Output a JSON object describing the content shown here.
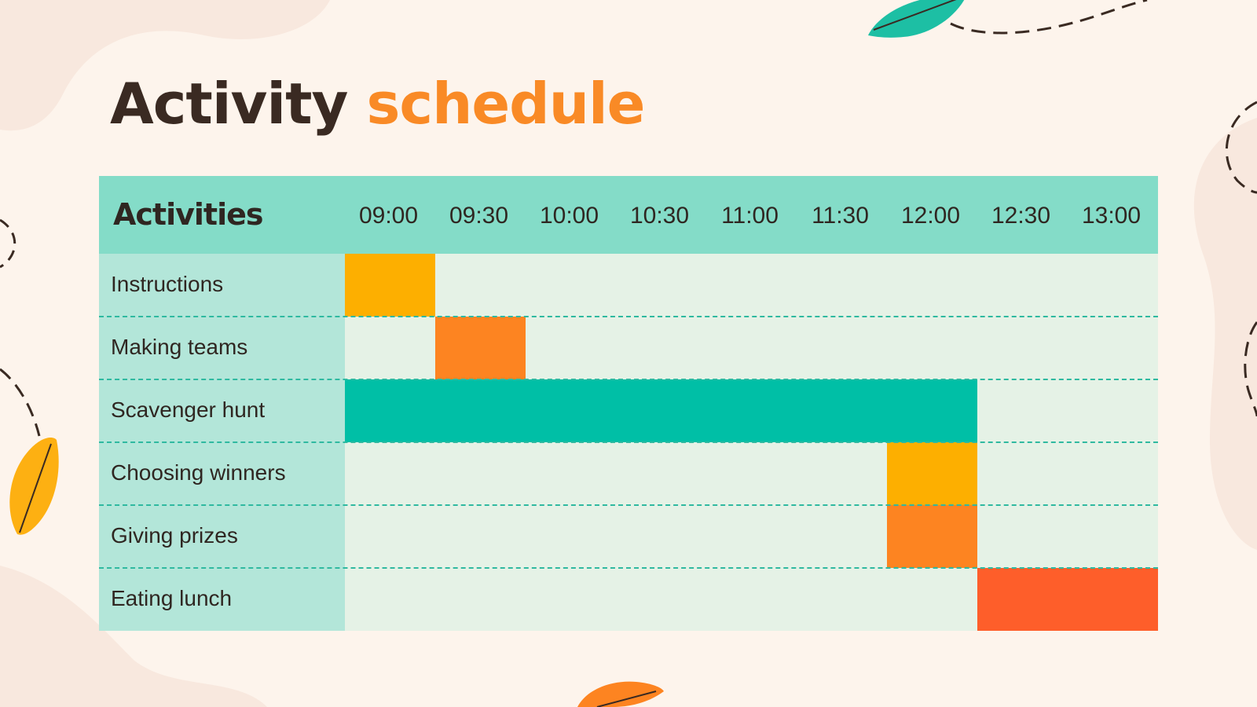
{
  "title": {
    "part1": "Activity",
    "part2": "schedule"
  },
  "colors": {
    "background": "#fdf4ec",
    "header": "#84dcc8",
    "label_column": "#b3e6d9",
    "track": "#e5f2e6",
    "title_dark": "#3a2a22",
    "title_accent": "#f98a26",
    "yellow": "#fdaf00",
    "orange": "#fd8421",
    "teal": "#00bfa6",
    "red_orange": "#fe5e2a"
  },
  "table": {
    "header_label": "Activities",
    "times": [
      "09:00",
      "09:30",
      "10:00",
      "10:30",
      "11:00",
      "11:30",
      "12:00",
      "12:30",
      "13:00"
    ],
    "rows": [
      {
        "label": "Instructions",
        "start": "09:00",
        "end": "09:30",
        "color": "#fdaf00"
      },
      {
        "label": "Making teams",
        "start": "09:30",
        "end": "10:00",
        "color": "#fd8421"
      },
      {
        "label": "Scavenger hunt",
        "start": "09:00",
        "end": "12:30",
        "color": "#00bfa6"
      },
      {
        "label": "Choosing winners",
        "start": "12:00",
        "end": "12:30",
        "color": "#fdaf00"
      },
      {
        "label": "Giving prizes",
        "start": "12:00",
        "end": "12:30",
        "color": "#fd8421"
      },
      {
        "label": "Eating lunch",
        "start": "12:30",
        "end": "13:30",
        "color": "#fe5e2a"
      }
    ]
  },
  "decorations": {
    "icons": [
      "leaf-icon",
      "dashed-trail"
    ]
  }
}
